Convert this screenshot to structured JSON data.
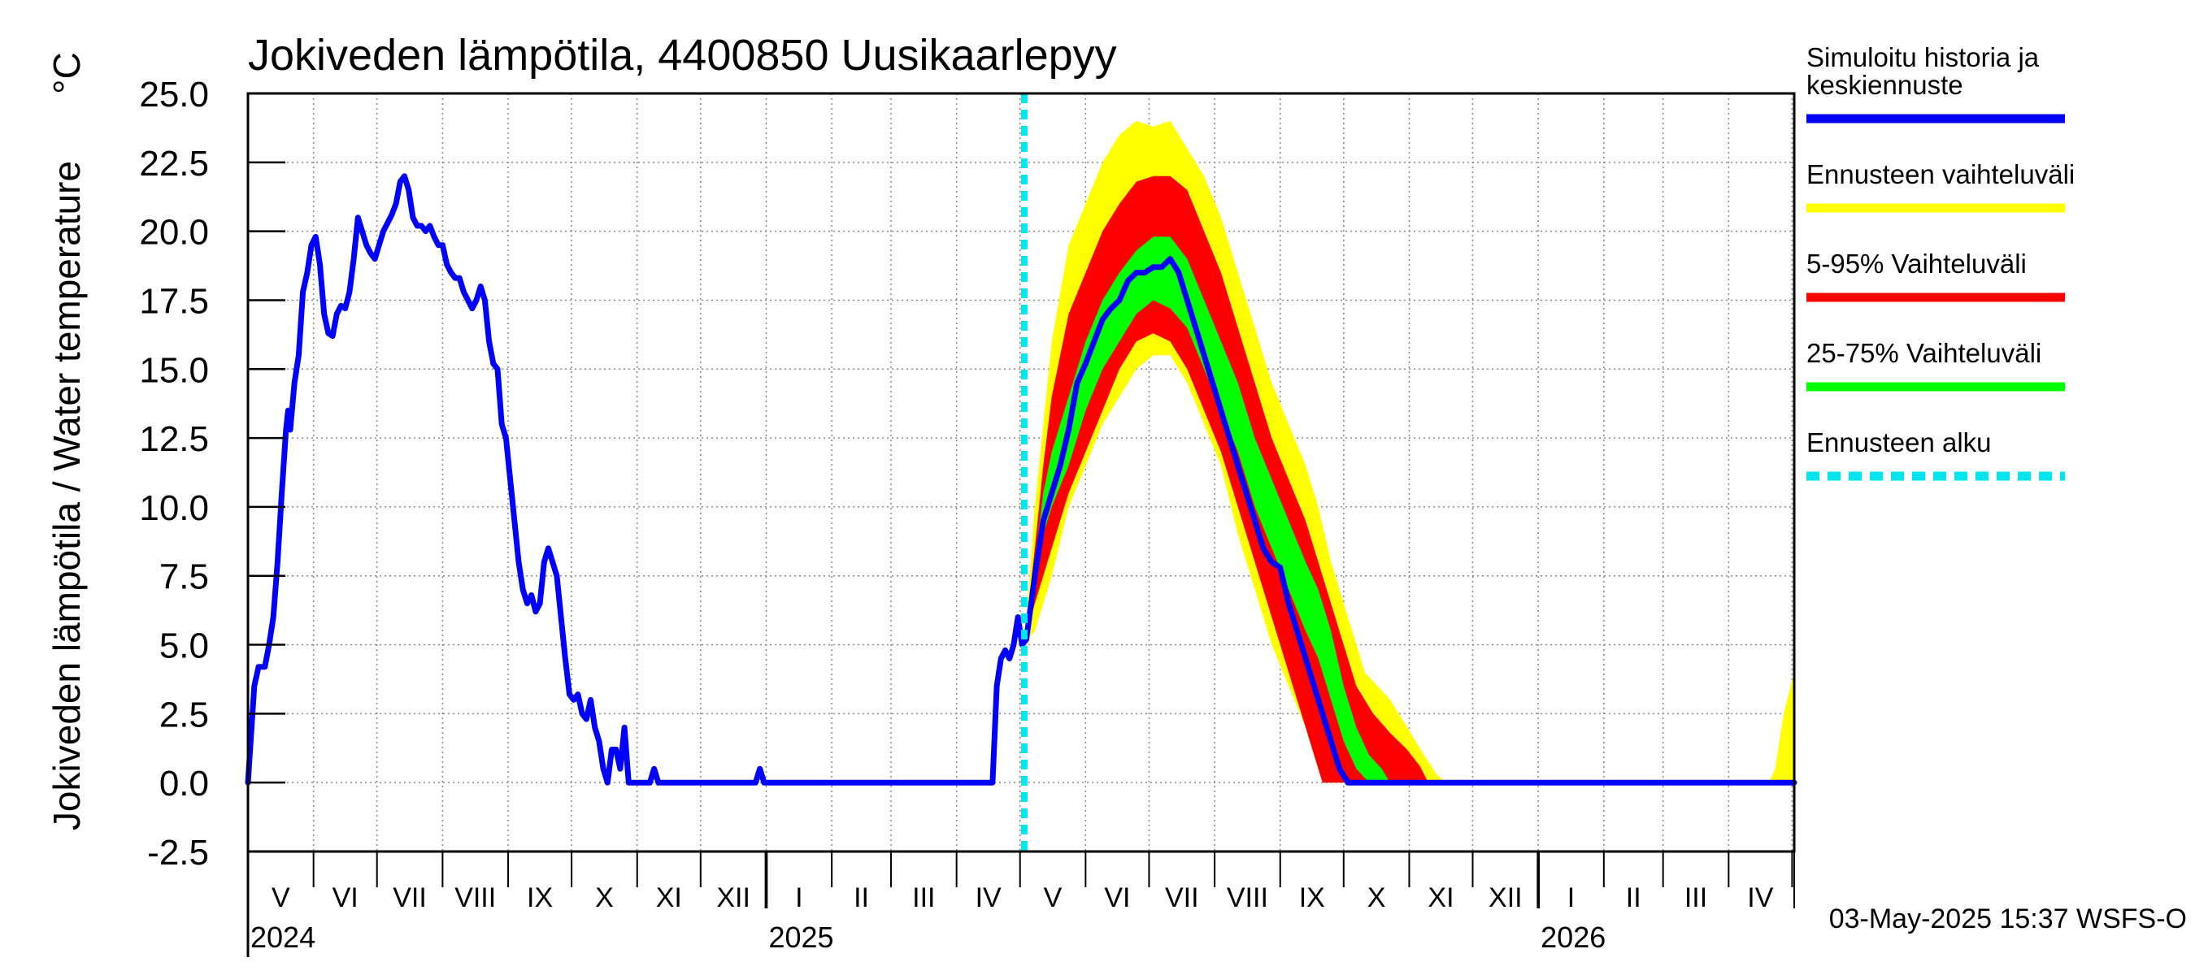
{
  "chart_data": {
    "type": "line",
    "title": "Jokiveden lämpötila, 4400850 Uusikaarlepyy",
    "ylabel": "Jokiveden lämpötila / Water temperature",
    "yunit": "°C",
    "ylim": [
      -2.5,
      25.0
    ],
    "yticks": [
      "25.0",
      "22.5",
      "20.0",
      "17.5",
      "15.0",
      "12.5",
      "10.0",
      "7.5",
      "5.0",
      "2.5",
      "0.0",
      "-2.5"
    ],
    "x_domain_days": [
      0,
      731
    ],
    "months": [
      {
        "label": "V",
        "start": 0,
        "end": 31
      },
      {
        "label": "VI",
        "start": 31,
        "end": 61
      },
      {
        "label": "VII",
        "start": 61,
        "end": 92
      },
      {
        "label": "VIII",
        "start": 92,
        "end": 123
      },
      {
        "label": "IX",
        "start": 123,
        "end": 153
      },
      {
        "label": "X",
        "start": 153,
        "end": 184
      },
      {
        "label": "XI",
        "start": 184,
        "end": 214
      },
      {
        "label": "XII",
        "start": 214,
        "end": 245
      },
      {
        "label": "I",
        "start": 245,
        "end": 276
      },
      {
        "label": "II",
        "start": 276,
        "end": 304
      },
      {
        "label": "III",
        "start": 304,
        "end": 335
      },
      {
        "label": "IV",
        "start": 335,
        "end": 365
      },
      {
        "label": "V",
        "start": 365,
        "end": 396
      },
      {
        "label": "VI",
        "start": 396,
        "end": 426
      },
      {
        "label": "VII",
        "start": 426,
        "end": 457
      },
      {
        "label": "VIII",
        "start": 457,
        "end": 488
      },
      {
        "label": "IX",
        "start": 488,
        "end": 518
      },
      {
        "label": "X",
        "start": 518,
        "end": 549
      },
      {
        "label": "XI",
        "start": 549,
        "end": 579
      },
      {
        "label": "XII",
        "start": 579,
        "end": 610
      },
      {
        "label": "I",
        "start": 610,
        "end": 641
      },
      {
        "label": "II",
        "start": 641,
        "end": 669
      },
      {
        "label": "III",
        "start": 669,
        "end": 700
      },
      {
        "label": "IV",
        "start": 700,
        "end": 730
      }
    ],
    "years": [
      {
        "label": "2024",
        "day": 0
      },
      {
        "label": "2025",
        "day": 245
      },
      {
        "label": "2026",
        "day": 610
      }
    ],
    "forecast_start_day": 367,
    "series": [
      {
        "name": "Simuloitu historia ja keskiennuste",
        "color": "#0000ff",
        "points": [
          [
            0,
            0
          ],
          [
            3,
            3.5
          ],
          [
            5,
            4.2
          ],
          [
            8,
            4.2
          ],
          [
            10,
            5
          ],
          [
            12,
            6
          ],
          [
            14,
            8
          ],
          [
            16,
            10.5
          ],
          [
            18,
            12.8
          ],
          [
            19,
            13.5
          ],
          [
            20,
            12.8
          ],
          [
            22,
            14.5
          ],
          [
            24,
            15.5
          ],
          [
            26,
            17.8
          ],
          [
            28,
            18.5
          ],
          [
            30,
            19.5
          ],
          [
            32,
            19.8
          ],
          [
            34,
            18.8
          ],
          [
            36,
            17
          ],
          [
            38,
            16.3
          ],
          [
            40,
            16.2
          ],
          [
            42,
            17
          ],
          [
            44,
            17.3
          ],
          [
            46,
            17.2
          ],
          [
            48,
            17.8
          ],
          [
            50,
            19
          ],
          [
            52,
            20.5
          ],
          [
            54,
            20
          ],
          [
            56,
            19.5
          ],
          [
            58,
            19.2
          ],
          [
            60,
            19
          ],
          [
            62,
            19.5
          ],
          [
            64,
            20
          ],
          [
            66,
            20.3
          ],
          [
            68,
            20.6
          ],
          [
            70,
            21
          ],
          [
            72,
            21.8
          ],
          [
            74,
            22
          ],
          [
            76,
            21.5
          ],
          [
            78,
            20.5
          ],
          [
            80,
            20.2
          ],
          [
            82,
            20.2
          ],
          [
            84,
            20
          ],
          [
            86,
            20.2
          ],
          [
            88,
            19.8
          ],
          [
            90,
            19.5
          ],
          [
            92,
            19.5
          ],
          [
            94,
            18.8
          ],
          [
            96,
            18.5
          ],
          [
            98,
            18.3
          ],
          [
            100,
            18.3
          ],
          [
            102,
            17.8
          ],
          [
            104,
            17.5
          ],
          [
            106,
            17.2
          ],
          [
            108,
            17.5
          ],
          [
            110,
            18
          ],
          [
            112,
            17.5
          ],
          [
            114,
            16
          ],
          [
            116,
            15.2
          ],
          [
            118,
            15
          ],
          [
            120,
            13
          ],
          [
            122,
            12.5
          ],
          [
            124,
            11
          ],
          [
            126,
            9.5
          ],
          [
            128,
            8
          ],
          [
            130,
            7
          ],
          [
            132,
            6.5
          ],
          [
            134,
            6.8
          ],
          [
            136,
            6.2
          ],
          [
            138,
            6.5
          ],
          [
            140,
            8
          ],
          [
            142,
            8.5
          ],
          [
            144,
            8
          ],
          [
            146,
            7.5
          ],
          [
            148,
            6
          ],
          [
            150,
            4.5
          ],
          [
            152,
            3.2
          ],
          [
            154,
            3
          ],
          [
            156,
            3.2
          ],
          [
            158,
            2.5
          ],
          [
            160,
            2.3
          ],
          [
            162,
            3
          ],
          [
            164,
            2
          ],
          [
            166,
            1.5
          ],
          [
            168,
            0.5
          ],
          [
            170,
            0
          ],
          [
            172,
            1.2
          ],
          [
            174,
            1.2
          ],
          [
            176,
            0.5
          ],
          [
            178,
            2
          ],
          [
            180,
            0
          ],
          [
            190,
            0
          ],
          [
            192,
            0.5
          ],
          [
            194,
            0
          ],
          [
            240,
            0
          ],
          [
            242,
            0.5
          ],
          [
            244,
            0
          ],
          [
            352,
            0
          ],
          [
            354,
            3.5
          ],
          [
            356,
            4.5
          ],
          [
            358,
            4.8
          ],
          [
            360,
            4.5
          ],
          [
            362,
            5
          ],
          [
            364,
            6
          ],
          [
            366,
            5
          ],
          [
            368,
            5.2
          ],
          [
            372,
            7.5
          ],
          [
            376,
            9.5
          ],
          [
            380,
            10.5
          ],
          [
            384,
            11.5
          ],
          [
            388,
            12.8
          ],
          [
            392,
            14.5
          ],
          [
            396,
            15.2
          ],
          [
            400,
            16
          ],
          [
            404,
            16.8
          ],
          [
            408,
            17.2
          ],
          [
            412,
            17.5
          ],
          [
            416,
            18.2
          ],
          [
            420,
            18.5
          ],
          [
            424,
            18.5
          ],
          [
            428,
            18.7
          ],
          [
            432,
            18.7
          ],
          [
            436,
            19
          ],
          [
            440,
            18.5
          ],
          [
            444,
            17.5
          ],
          [
            448,
            16.5
          ],
          [
            452,
            15.5
          ],
          [
            456,
            14.5
          ],
          [
            460,
            13.5
          ],
          [
            464,
            12.5
          ],
          [
            468,
            11.5
          ],
          [
            472,
            10.5
          ],
          [
            476,
            9.5
          ],
          [
            480,
            8.5
          ],
          [
            484,
            8
          ],
          [
            488,
            7.8
          ],
          [
            492,
            6.5
          ],
          [
            496,
            5.5
          ],
          [
            500,
            4.5
          ],
          [
            504,
            3.5
          ],
          [
            508,
            2.5
          ],
          [
            512,
            1.5
          ],
          [
            516,
            0.5
          ],
          [
            520,
            0
          ],
          [
            731,
            0
          ]
        ]
      }
    ],
    "bands": [
      {
        "name": "Ennusteen vaihteluväli",
        "color": "#ffff00",
        "points": [
          [
            367,
            5,
            5
          ],
          [
            372,
            10,
            5.5
          ],
          [
            376,
            13,
            6.5
          ],
          [
            380,
            16,
            7.5
          ],
          [
            388,
            19.5,
            10
          ],
          [
            396,
            21,
            11.5
          ],
          [
            404,
            22.5,
            13
          ],
          [
            412,
            23.5,
            14
          ],
          [
            420,
            24,
            15
          ],
          [
            428,
            23.8,
            15.5
          ],
          [
            436,
            24,
            15.5
          ],
          [
            444,
            23,
            14.5
          ],
          [
            452,
            22,
            13
          ],
          [
            460,
            20.5,
            11.5
          ],
          [
            468,
            18.5,
            9
          ],
          [
            476,
            16.5,
            7
          ],
          [
            484,
            14.5,
            5
          ],
          [
            492,
            13,
            3.5
          ],
          [
            500,
            11.5,
            2
          ],
          [
            506,
            10,
            0.5
          ],
          [
            512,
            8,
            0
          ],
          [
            520,
            6,
            0
          ],
          [
            528,
            4,
            0
          ],
          [
            534,
            3.5,
            0
          ],
          [
            540,
            3,
            0
          ],
          [
            548,
            2,
            0
          ],
          [
            556,
            1,
            0
          ],
          [
            562,
            0.3,
            0
          ],
          [
            566,
            0,
            0
          ],
          [
            719,
            0,
            0
          ],
          [
            722,
            0.5,
            0
          ],
          [
            726,
            2.5,
            0
          ],
          [
            731,
            4,
            0
          ]
        ]
      },
      {
        "name": "5-95% Vaihteluväli",
        "color": "#ff0000",
        "points": [
          [
            367,
            5,
            5
          ],
          [
            372,
            8.5,
            6.5
          ],
          [
            376,
            11.5,
            7.5
          ],
          [
            380,
            14,
            8.5
          ],
          [
            388,
            17,
            10.5
          ],
          [
            396,
            18.5,
            12
          ],
          [
            404,
            20,
            13.5
          ],
          [
            412,
            21,
            15
          ],
          [
            420,
            21.8,
            16
          ],
          [
            428,
            22,
            16.3
          ],
          [
            436,
            22,
            16
          ],
          [
            444,
            21.5,
            15
          ],
          [
            452,
            20,
            13.5
          ],
          [
            460,
            18.5,
            12
          ],
          [
            468,
            16.5,
            10
          ],
          [
            476,
            14.5,
            8
          ],
          [
            484,
            12.5,
            6
          ],
          [
            492,
            11,
            4
          ],
          [
            500,
            9.5,
            2
          ],
          [
            504,
            8.5,
            1
          ],
          [
            508,
            7.5,
            0
          ],
          [
            516,
            5.5,
            0
          ],
          [
            524,
            3.5,
            0
          ],
          [
            532,
            2.5,
            0
          ],
          [
            540,
            1.8,
            0
          ],
          [
            548,
            1.2,
            0
          ],
          [
            554,
            0.6,
            0
          ],
          [
            558,
            0,
            0
          ]
        ]
      },
      {
        "name": "25-75% Vaihteluväli",
        "color": "#00ff00",
        "points": [
          [
            367,
            5,
            5
          ],
          [
            372,
            8,
            7
          ],
          [
            376,
            10.5,
            9
          ],
          [
            380,
            12,
            10
          ],
          [
            388,
            14,
            11.5
          ],
          [
            396,
            16,
            13.5
          ],
          [
            404,
            17.5,
            15
          ],
          [
            412,
            18.5,
            16
          ],
          [
            420,
            19.3,
            17
          ],
          [
            428,
            19.8,
            17.5
          ],
          [
            436,
            19.8,
            17.2
          ],
          [
            444,
            19,
            16.5
          ],
          [
            452,
            17.5,
            15
          ],
          [
            460,
            16,
            13.5
          ],
          [
            468,
            14.5,
            12
          ],
          [
            476,
            12.5,
            10
          ],
          [
            484,
            11,
            8.5
          ],
          [
            492,
            9.5,
            7
          ],
          [
            500,
            8,
            5.5
          ],
          [
            506,
            7,
            4.5
          ],
          [
            512,
            5.5,
            3
          ],
          [
            518,
            3.5,
            1.5
          ],
          [
            524,
            2,
            0.5
          ],
          [
            530,
            1,
            0
          ],
          [
            536,
            0.5,
            0
          ],
          [
            540,
            0,
            0
          ]
        ]
      }
    ],
    "legend": [
      {
        "label": "Simuloitu historia ja keskiennuste",
        "lines": [
          "Simuloitu historia ja",
          "keskiennuste"
        ],
        "color": "#0000ff",
        "style": "solid"
      },
      {
        "label": "Ennusteen vaihteluväli",
        "lines": [
          "Ennusteen vaihteluväli"
        ],
        "color": "#ffff00",
        "style": "solid"
      },
      {
        "label": "5-95% Vaihteluväli",
        "lines": [
          "5-95% Vaihteluväli"
        ],
        "color": "#ff0000",
        "style": "solid"
      },
      {
        "label": "25-75% Vaihteluväli",
        "lines": [
          "25-75% Vaihteluväli"
        ],
        "color": "#00ff00",
        "style": "solid"
      },
      {
        "label": "Ennusteen alku",
        "lines": [
          "Ennusteen alku"
        ],
        "color": "#00e5ee",
        "style": "dashed"
      }
    ],
    "footer": "03-May-2025 15:37 WSFS-O"
  }
}
